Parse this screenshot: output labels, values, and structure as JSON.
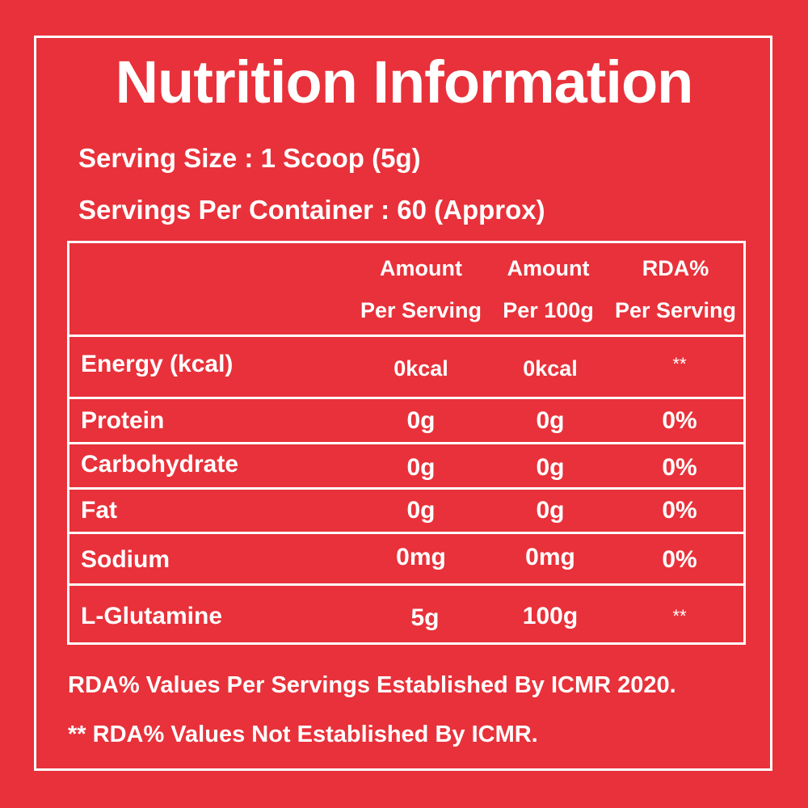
{
  "title": "Nutrition Information",
  "serving_size": "Serving Size : 1 Scoop (5g)",
  "servings_per_container": "Servings Per Container : 60 (Approx)",
  "table": {
    "headers": [
      {
        "line1": "Amount",
        "line2": "Per Serving"
      },
      {
        "line1": "Amount",
        "line2": "Per 100g"
      },
      {
        "line1": "RDA%",
        "line2": "Per Serving"
      }
    ],
    "rows": [
      {
        "nutrient": "Energy (kcal)",
        "per_serving": "0kcal",
        "per_100g": "0kcal",
        "rda": "**"
      },
      {
        "nutrient": "Protein",
        "per_serving": "0g",
        "per_100g": "0g",
        "rda": "0%"
      },
      {
        "nutrient": "Carbohydrate",
        "per_serving": "0g",
        "per_100g": "0g",
        "rda": "0%"
      },
      {
        "nutrient": "Fat",
        "per_serving": "0g",
        "per_100g": "0g",
        "rda": "0%"
      },
      {
        "nutrient": "Sodium",
        "per_serving": "0mg",
        "per_100g": "0mg",
        "rda": "0%"
      },
      {
        "nutrient": "L-Glutamine",
        "per_serving": "5g",
        "per_100g": "100g",
        "rda": "**"
      }
    ]
  },
  "footnotes": [
    "RDA%  Values Per Servings Established By ICMR 2020.",
    "** RDA%  Values Not Established By ICMR."
  ],
  "colors": {
    "background": "#e8313a",
    "foreground": "#ffffff"
  }
}
